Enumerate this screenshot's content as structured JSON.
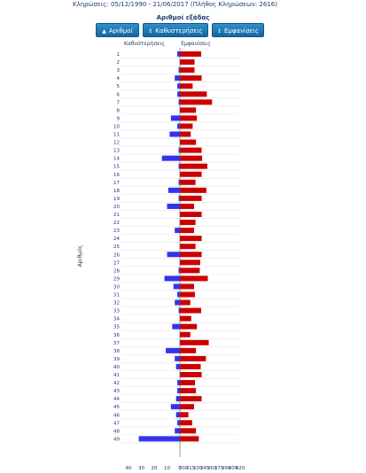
{
  "header": {
    "label": "Κληρώσεις:",
    "range": "05/12/1990 - 21/06/2017  (Πλήθος Κληρώσεων: 2616)"
  },
  "subtitle": "Αριθμοί εξάδας",
  "buttons": [
    {
      "icon": "▲",
      "label": "Αριθμοί"
    },
    {
      "icon": "↕",
      "label": "Καθυστερήσεις"
    },
    {
      "icon": "↕",
      "label": "Εμφανίσεις"
    }
  ],
  "colors": {
    "delay": "#3333ee",
    "appear": "#cc0000",
    "text": "#1f3b73"
  },
  "chart_data": {
    "type": "bar",
    "orientation": "horizontal-diverging",
    "ylabel": "Αριθμός",
    "left_label": "Καθυστερήσεις",
    "right_label": "Εμφανίσεις",
    "categories": [
      "1",
      "2",
      "3",
      "4",
      "5",
      "6",
      "7",
      "8",
      "9",
      "10",
      "11",
      "12",
      "13",
      "14",
      "15",
      "16",
      "17",
      "18",
      "19",
      "20",
      "21",
      "22",
      "23",
      "24",
      "25",
      "26",
      "27",
      "28",
      "29",
      "30",
      "31",
      "32",
      "33",
      "34",
      "35",
      "36",
      "37",
      "38",
      "39",
      "40",
      "41",
      "42",
      "43",
      "44",
      "45",
      "46",
      "47",
      "48",
      "49"
    ],
    "delay_ticks": [
      40,
      30,
      20,
      10,
      0
    ],
    "appear_ticks": [
      300,
      315,
      330,
      345,
      360,
      375,
      390,
      405,
      420
    ],
    "delay_range": [
      0,
      40
    ],
    "appear_range": [
      300,
      420
    ],
    "series": [
      {
        "name": "Καθυστερήσεις",
        "values": [
          2,
          0,
          1,
          4,
          2,
          2,
          1,
          0,
          7,
          2,
          8,
          0,
          1,
          14,
          1,
          0,
          1,
          9,
          1,
          10,
          0,
          0,
          4,
          0,
          0,
          10,
          0,
          1,
          12,
          5,
          2,
          4,
          1,
          0,
          6,
          0,
          0,
          11,
          4,
          3,
          0,
          2,
          2,
          3,
          7,
          3,
          2,
          4,
          32
        ]
      },
      {
        "name": "Εμφανίσεις",
        "values": [
          345,
          331,
          331,
          346,
          327,
          357,
          368,
          334,
          336,
          327,
          323,
          334,
          346,
          347,
          358,
          346,
          333,
          356,
          346,
          330,
          346,
          333,
          330,
          346,
          333,
          346,
          343,
          342,
          359,
          330,
          332,
          322,
          345,
          324,
          336,
          322,
          361,
          334,
          355,
          344,
          346,
          332,
          334,
          346,
          330,
          318,
          326,
          334,
          340
        ]
      }
    ]
  }
}
